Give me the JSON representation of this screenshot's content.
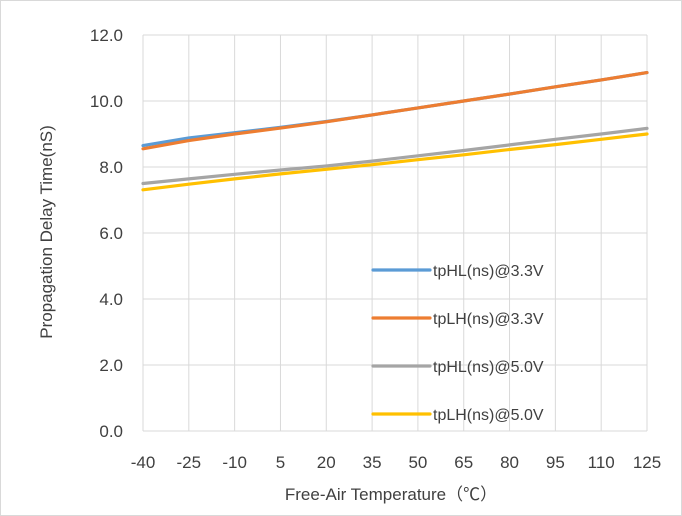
{
  "chart_data": {
    "type": "line",
    "xlabel": "Free-Air Temperature（℃）",
    "ylabel": "Propagation Delay Time(nS)",
    "x": [
      "-40",
      "-25",
      "-10",
      "5",
      "20",
      "35",
      "50",
      "65",
      "80",
      "95",
      "110",
      "125"
    ],
    "ylim": [
      0,
      12
    ],
    "yticks": [
      "0.0",
      "2.0",
      "4.0",
      "6.0",
      "8.0",
      "10.0",
      "12.0"
    ],
    "grid": true,
    "legend_position": "lower-right inside plot",
    "series": [
      {
        "name": "tpHL(ns)@3.3V",
        "color": "#5b9bd5",
        "values": [
          8.65,
          8.88,
          9.04,
          9.2,
          9.38,
          9.58,
          9.79,
          10.0,
          10.21,
          10.43,
          10.64,
          10.86
        ]
      },
      {
        "name": "tpLH(ns)@3.3V",
        "color": "#ed7d31",
        "values": [
          8.55,
          8.8,
          9.0,
          9.18,
          9.37,
          9.58,
          9.79,
          10.0,
          10.21,
          10.43,
          10.64,
          10.86
        ]
      },
      {
        "name": "tpHL(ns)@5.0V",
        "color": "#a5a5a5",
        "values": [
          7.5,
          7.64,
          7.78,
          7.91,
          8.03,
          8.18,
          8.34,
          8.5,
          8.67,
          8.84,
          9.0,
          9.17
        ]
      },
      {
        "name": "tpLH(ns)@5.0V",
        "color": "#ffc000",
        "values": [
          7.31,
          7.48,
          7.64,
          7.79,
          7.93,
          8.07,
          8.22,
          8.37,
          8.53,
          8.68,
          8.84,
          9.0
        ]
      }
    ]
  }
}
